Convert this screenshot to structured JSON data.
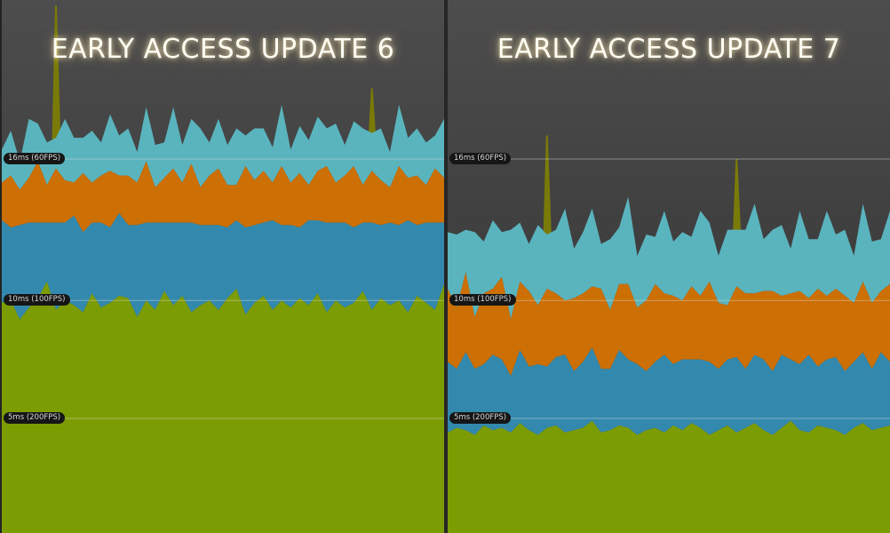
{
  "panels": [
    {
      "title": "EARLY ACCESS UPDATE 6"
    },
    {
      "title": "EARLY ACCESS UPDATE 7"
    }
  ],
  "reference_lines": [
    {
      "label": "16ms (60FPS)",
      "ms": 16
    },
    {
      "label": "10ms (100FPS)",
      "ms": 10
    },
    {
      "label": "5ms (200FPS)",
      "ms": 5
    }
  ],
  "colors": {
    "series_1": "#7c9c04",
    "series_2": "#3389ad",
    "series_3": "#cc6f04",
    "series_4": "#5ab4be",
    "spikes": "#7a7a08"
  },
  "chart_data": [
    {
      "type": "area",
      "stacked": true,
      "title": "EARLY ACCESS UPDATE 6",
      "ylim": [
        0,
        24
      ],
      "reference_lines_ms": [
        16,
        10,
        5
      ],
      "grid": false,
      "series": [
        {
          "values": [
            9.9,
            10.0,
            9.2,
            9.7,
            10.1,
            10.8,
            9.6,
            10.0,
            9.8,
            9.5,
            10.3,
            9.7,
            9.9,
            10.2,
            10.1,
            9.3,
            10.0,
            9.6,
            10.4,
            9.8,
            10.2,
            9.5,
            9.8,
            10.0,
            9.6,
            10.1,
            10.5,
            9.4,
            9.9,
            10.2,
            9.6,
            10.0,
            9.7,
            10.1,
            9.8,
            10.3,
            9.5,
            10.0,
            9.7,
            9.9,
            10.4,
            9.6,
            10.1,
            9.8,
            10.0,
            9.5,
            10.2,
            9.9,
            9.6,
            10.7
          ]
        },
        {
          "values": [
            3.5,
            3.1,
            4.0,
            3.6,
            3.2,
            2.5,
            3.7,
            3.3,
            3.8,
            3.4,
            3.0,
            3.6,
            3.2,
            3.5,
            3.1,
            3.9,
            3.3,
            3.7,
            2.9,
            3.5,
            3.1,
            3.8,
            3.4,
            3.2,
            3.6,
            3.0,
            2.9,
            3.7,
            3.3,
            3.1,
            3.8,
            3.2,
            3.5,
            3.0,
            3.6,
            3.1,
            3.8,
            3.3,
            3.6,
            3.2,
            2.9,
            3.7,
            3.1,
            3.5,
            3.2,
            3.9,
            3.0,
            3.4,
            3.7,
            2.6
          ]
        },
        {
          "values": [
            1.6,
            2.2,
            1.5,
            1.9,
            2.6,
            1.6,
            2.3,
            1.8,
            1.4,
            2.5,
            1.7,
            2.0,
            2.4,
            1.6,
            2.1,
            1.8,
            2.6,
            1.5,
            1.9,
            2.3,
            1.7,
            2.5,
            1.6,
            2.1,
            2.4,
            1.8,
            1.5,
            2.6,
            1.9,
            2.2,
            1.6,
            2.5,
            1.8,
            2.3,
            1.5,
            2.1,
            2.4,
            1.7,
            2.0,
            2.6,
            1.6,
            2.2,
            1.9,
            1.5,
            2.5,
            1.8,
            2.1,
            1.6,
            2.3,
            1.9
          ]
        },
        {
          "values": [
            1.4,
            1.9,
            1.2,
            2.5,
            1.6,
            1.8,
            1.3,
            2.6,
            1.9,
            1.5,
            2.2,
            1.4,
            2.4,
            1.7,
            2.0,
            1.3,
            2.3,
            1.8,
            1.5,
            2.6,
            1.6,
            1.9,
            2.5,
            1.4,
            2.1,
            1.7,
            2.4,
            1.3,
            2.2,
            1.8,
            1.5,
            2.6,
            1.4,
            2.0,
            1.9,
            2.3,
            1.6,
            2.5,
            1.3,
            1.9,
            2.4,
            1.6,
            2.2,
            1.5,
            2.6,
            1.7,
            2.0,
            1.8,
            1.4,
            2.5
          ]
        }
      ],
      "spikes_ms": [
        [
          6,
          22.5
        ],
        [
          41,
          19.0
        ]
      ]
    },
    {
      "type": "area",
      "stacked": true,
      "title": "EARLY ACCESS UPDATE 7",
      "ylim": [
        0,
        24
      ],
      "reference_lines_ms": [
        16,
        10,
        5
      ],
      "grid": false,
      "series": [
        {
          "values": [
            4.4,
            4.6,
            4.5,
            4.3,
            4.7,
            4.5,
            4.6,
            4.4,
            4.8,
            4.5,
            4.3,
            4.6,
            4.7,
            4.4,
            4.5,
            4.6,
            4.9,
            4.4,
            4.5,
            4.7,
            4.6,
            4.3,
            4.5,
            4.6,
            4.4,
            4.7,
            4.5,
            4.8,
            4.6,
            4.3,
            4.5,
            4.7,
            4.4,
            4.6,
            4.8,
            4.5,
            4.3,
            4.6,
            4.9,
            4.5,
            4.4,
            4.7,
            4.6,
            4.5,
            4.3,
            4.6,
            4.8,
            4.5,
            4.6,
            4.7
          ]
        },
        {
          "values": [
            3.0,
            2.5,
            3.3,
            2.8,
            2.6,
            3.2,
            2.9,
            2.4,
            3.1,
            2.7,
            3.0,
            2.6,
            2.9,
            3.3,
            2.5,
            2.8,
            3.1,
            2.7,
            2.6,
            3.2,
            2.9,
            3.0,
            2.5,
            2.8,
            3.3,
            2.6,
            3.0,
            2.7,
            2.9,
            3.1,
            2.6,
            2.8,
            3.2,
            2.5,
            2.9,
            3.0,
            2.7,
            3.1,
            2.6,
            2.8,
            3.3,
            2.5,
            2.9,
            3.1,
            2.7,
            2.8,
            3.0,
            2.6,
            3.2,
            2.7
          ]
        },
        {
          "values": [
            3.1,
            2.6,
            3.4,
            2.2,
            3.0,
            2.8,
            3.5,
            2.4,
            2.9,
            3.2,
            2.5,
            3.3,
            2.7,
            2.3,
            3.1,
            2.9,
            2.6,
            3.4,
            2.5,
            2.8,
            3.2,
            2.4,
            3.0,
            3.3,
            2.6,
            2.9,
            2.5,
            3.1,
            2.7,
            3.4,
            2.8,
            2.3,
            3.0,
            3.2,
            2.6,
            2.9,
            3.4,
            2.5,
            2.8,
            3.1,
            2.4,
            3.3,
            2.7,
            2.9,
            3.2,
            2.5,
            3.0,
            2.8,
            2.6,
            3.3
          ]
        },
        {
          "values": [
            2.4,
            3.1,
            1.8,
            3.6,
            2.2,
            2.9,
            1.9,
            3.8,
            2.5,
            2.0,
            3.4,
            2.3,
            2.7,
            3.9,
            2.1,
            2.6,
            3.3,
            1.9,
            3.0,
            2.4,
            3.7,
            2.2,
            2.8,
            2.0,
            3.5,
            2.3,
            2.9,
            2.1,
            3.6,
            2.5,
            2.0,
            3.2,
            2.4,
            2.7,
            3.8,
            2.2,
            2.6,
            3.0,
            1.9,
            3.4,
            2.5,
            2.1,
            3.6,
            2.3,
            2.8,
            2.0,
            3.3,
            2.6,
            2.2,
            3.1
          ]
        }
      ],
      "spikes_ms": [
        [
          11,
          17.0
        ],
        [
          32,
          16.0
        ]
      ]
    }
  ]
}
